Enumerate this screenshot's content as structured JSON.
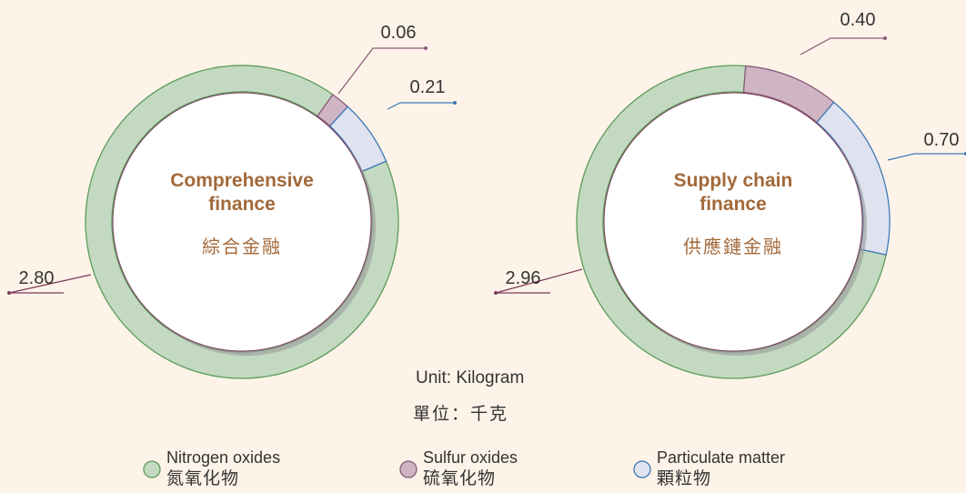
{
  "legend": [
    {
      "name": "Nitrogen oxides",
      "name_zh": "氮氧化物",
      "color": "#c3d9c1",
      "stroke": "#5c9c5c"
    },
    {
      "name": "Sulfur oxides",
      "name_zh": "硫氧化物",
      "color": "#cfb5c3",
      "stroke": "#8a5a7a"
    },
    {
      "name": "Particulate matter",
      "name_zh": "顆粒物",
      "color": "#dfe3ef",
      "stroke": "#3c78b5"
    }
  ],
  "unit": "Unit: Kilogram",
  "unit_zh": "單位：千克",
  "chart_data": [
    {
      "type": "donut",
      "title": "Comprehensive finance",
      "title_zh": "綜合金融",
      "values": [
        2.8,
        0.06,
        0.21
      ],
      "value_labels": [
        "2.80",
        "0.06",
        "0.21"
      ]
    },
    {
      "type": "donut",
      "title": "Supply chain finance",
      "title_zh": "供應鏈金融",
      "values": [
        2.96,
        0.4,
        0.7
      ],
      "value_labels": [
        "2.96",
        "0.40",
        "0.70"
      ]
    }
  ]
}
